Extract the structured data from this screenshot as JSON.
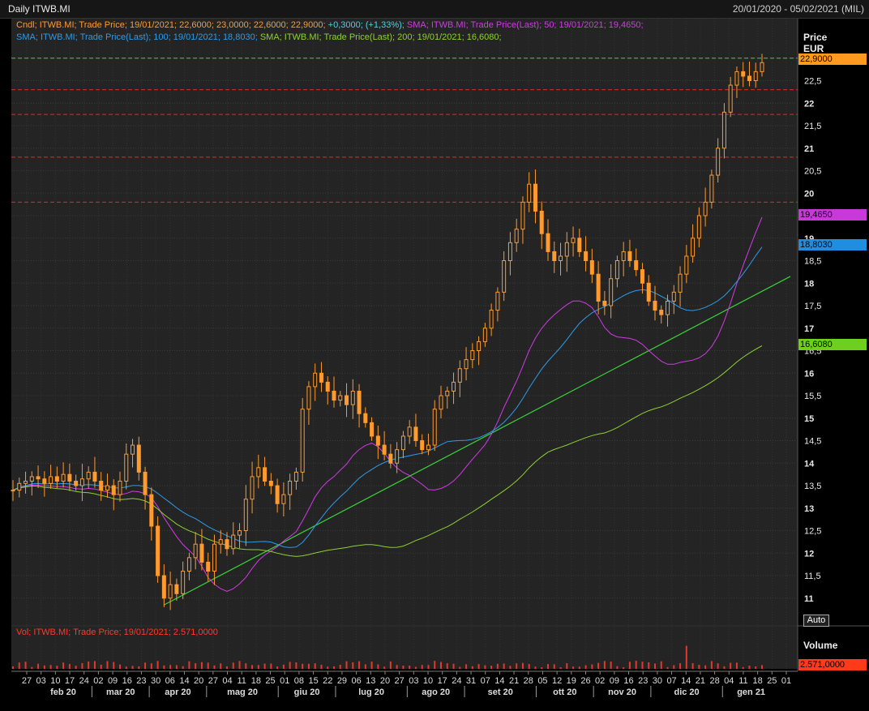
{
  "header": {
    "title": "Daily ITWB.MI",
    "date_range": "20/01/2020 - 05/02/2021 (MIL)"
  },
  "legend": {
    "candle": {
      "prefix": "Cndl; ITWB.MI; Trade Price;  19/01/2021; 22,6000; 23,0000; 22,6000; 22,9000;",
      "change": " +0,3000;  (+1,33%);",
      "color": "#ff9a2e",
      "change_color": "#3fd6e6"
    },
    "sma50": {
      "text": "SMA; ITWB.MI; Trade Price(Last);  50;  19/01/2021; 19,4650;",
      "color": "#d23ae6"
    },
    "sma100": {
      "text": "SMA; ITWB.MI; Trade Price(Last);  100;  19/01/2021; 18,8030;",
      "color": "#2e9be8"
    },
    "sma200": {
      "text": "SMA; ITWB.MI; Trade Price(Last);  200;  19/01/2021; 16,6080;",
      "color": "#8ed130"
    }
  },
  "volume_legend": {
    "text": "Vol; ITWB.MI; Trade Price;  19/01/2021; 2.571,0000",
    "color": "#ff3a2a"
  },
  "price_axis": {
    "title": "Price",
    "unit": "EUR"
  },
  "volume_axis": {
    "title": "Volume"
  },
  "auto_button": "Auto",
  "badges": {
    "last_price": {
      "text": "22,9000",
      "bg": "#ff9a1e"
    },
    "sma50": {
      "text": "19,4650",
      "bg": "#c83ad8"
    },
    "sma100": {
      "text": "18,8030",
      "bg": "#1f8ee0"
    },
    "sma200": {
      "text": "16,6080",
      "bg": "#6fcf1f"
    },
    "volume": {
      "text": "2.571,0000",
      "bg": "#ff3a1a"
    }
  },
  "chart_data": {
    "type": "candlestick",
    "ylim": [
      10.6,
      23.5
    ],
    "y_ticks": [
      "11",
      "11,5",
      "12",
      "12,5",
      "13",
      "13,5",
      "14",
      "14,5",
      "15",
      "15,5",
      "16",
      "16,5",
      "17",
      "17,5",
      "18",
      "18,5",
      "19",
      "19,5",
      "20",
      "20,5",
      "21",
      "21,5",
      "22",
      "22,5",
      "23"
    ],
    "y_tick_values": [
      11,
      11.5,
      12,
      12.5,
      13,
      13.5,
      14,
      14.5,
      15,
      15.5,
      16,
      16.5,
      17,
      17.5,
      18,
      18.5,
      19,
      19.5,
      20,
      20.5,
      21,
      21.5,
      22,
      22.5,
      23
    ],
    "x_day_ticks": [
      "27",
      "03",
      "10",
      "17",
      "24",
      "02",
      "09",
      "16",
      "23",
      "30",
      "06",
      "14",
      "20",
      "27",
      "04",
      "11",
      "18",
      "25",
      "01",
      "08",
      "15",
      "22",
      "29",
      "06",
      "13",
      "20",
      "27",
      "03",
      "10",
      "17",
      "24",
      "31",
      "07",
      "14",
      "21",
      "28",
      "05",
      "12",
      "19",
      "26",
      "02",
      "09",
      "16",
      "23",
      "30",
      "07",
      "14",
      "21",
      "28",
      "04",
      "11",
      "18",
      "25",
      "01"
    ],
    "x_month_labels": [
      "feb 20",
      "mar 20",
      "apr 20",
      "mag 20",
      "giu 20",
      "lug 20",
      "ago 20",
      "set 20",
      "ott 20",
      "nov 20",
      "dic 20",
      "gen 21"
    ],
    "candles_close": [
      13.4,
      13.55,
      13.6,
      13.7,
      13.65,
      13.55,
      13.7,
      13.6,
      13.75,
      13.6,
      13.5,
      13.65,
      13.8,
      13.6,
      13.4,
      13.5,
      13.3,
      13.6,
      14.2,
      14.4,
      13.8,
      13.3,
      12.6,
      11.5,
      11.0,
      11.3,
      11.1,
      11.6,
      11.9,
      12.2,
      11.8,
      11.6,
      12.2,
      12.3,
      12.1,
      12.4,
      12.5,
      13.2,
      13.7,
      13.9,
      13.6,
      13.5,
      13.1,
      13.3,
      13.6,
      13.8,
      15.2,
      15.7,
      16.0,
      15.8,
      15.6,
      15.4,
      15.5,
      15.3,
      15.6,
      15.1,
      14.9,
      14.6,
      14.4,
      14.2,
      14.0,
      14.3,
      14.6,
      14.8,
      14.5,
      14.3,
      14.4,
      15.2,
      15.5,
      15.6,
      15.8,
      16.1,
      16.3,
      16.5,
      16.7,
      17.0,
      17.4,
      17.8,
      18.5,
      18.9,
      19.2,
      19.8,
      20.2,
      19.6,
      19.1,
      18.7,
      18.5,
      18.6,
      18.9,
      19.0,
      18.7,
      18.5,
      18.2,
      17.6,
      17.5,
      18.1,
      18.5,
      18.7,
      18.5,
      18.3,
      18.0,
      17.6,
      17.4,
      17.3,
      17.6,
      17.8,
      18.2,
      18.6,
      19.0,
      19.5,
      19.8,
      20.4,
      21.0,
      21.8,
      22.4,
      22.7,
      22.6,
      22.5,
      22.7,
      22.9
    ],
    "series": [
      {
        "name": "SMA 50",
        "last": 19.465
      },
      {
        "name": "SMA 100",
        "last": 18.803
      },
      {
        "name": "SMA 200",
        "last": 16.608
      }
    ],
    "horizontal_levels": [
      22.3,
      21.75,
      20.8,
      19.8,
      23.0
    ],
    "volume_last": 2571
  }
}
